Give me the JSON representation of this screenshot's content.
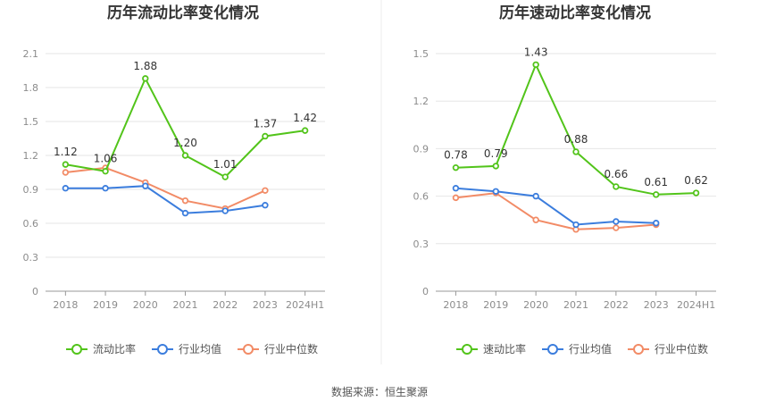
{
  "source": "数据来源：恒生聚源",
  "chart_data": [
    {
      "type": "line",
      "title": "历年流动比率变化情况",
      "categories": [
        "2018",
        "2019",
        "2020",
        "2021",
        "2022",
        "2023",
        "2024H1"
      ],
      "yticks": [
        "0",
        "0.3",
        "0.6",
        "0.9",
        "1.2",
        "1.5",
        "1.8",
        "2.1"
      ],
      "ylim": [
        0,
        2.1
      ],
      "grid": true,
      "legend_position": "bottom",
      "series": [
        {
          "name": "流动比率",
          "color": "#52c41a",
          "values": [
            1.12,
            1.06,
            1.88,
            1.2,
            1.01,
            1.37,
            1.42
          ],
          "labels": [
            "1.12",
            "1.06",
            "1.88",
            "1.20",
            "1.01",
            "1.37",
            "1.42"
          ]
        },
        {
          "name": "行业均值",
          "color": "#3b7ddd",
          "values": [
            0.91,
            0.91,
            0.93,
            0.69,
            0.71,
            0.76,
            null
          ]
        },
        {
          "name": "行业中位数",
          "color": "#f28b66",
          "values": [
            1.05,
            1.09,
            0.96,
            0.8,
            0.73,
            0.89,
            null
          ]
        }
      ]
    },
    {
      "type": "line",
      "title": "历年速动比率变化情况",
      "categories": [
        "2018",
        "2019",
        "2020",
        "2021",
        "2022",
        "2023",
        "2024H1"
      ],
      "yticks": [
        "0",
        "0.3",
        "0.6",
        "0.9",
        "1.2",
        "1.5"
      ],
      "ylim": [
        0,
        1.5
      ],
      "grid": true,
      "legend_position": "bottom",
      "series": [
        {
          "name": "速动比率",
          "color": "#52c41a",
          "values": [
            0.78,
            0.79,
            1.43,
            0.88,
            0.66,
            0.61,
            0.62
          ],
          "labels": [
            "0.78",
            "0.79",
            "1.43",
            "0.88",
            "0.66",
            "0.61",
            "0.62"
          ]
        },
        {
          "name": "行业均值",
          "color": "#3b7ddd",
          "values": [
            0.65,
            0.63,
            0.6,
            0.42,
            0.44,
            0.43,
            null
          ]
        },
        {
          "name": "行业中位数",
          "color": "#f28b66",
          "values": [
            0.59,
            0.62,
            0.45,
            0.39,
            0.4,
            0.42,
            null
          ]
        }
      ]
    }
  ]
}
